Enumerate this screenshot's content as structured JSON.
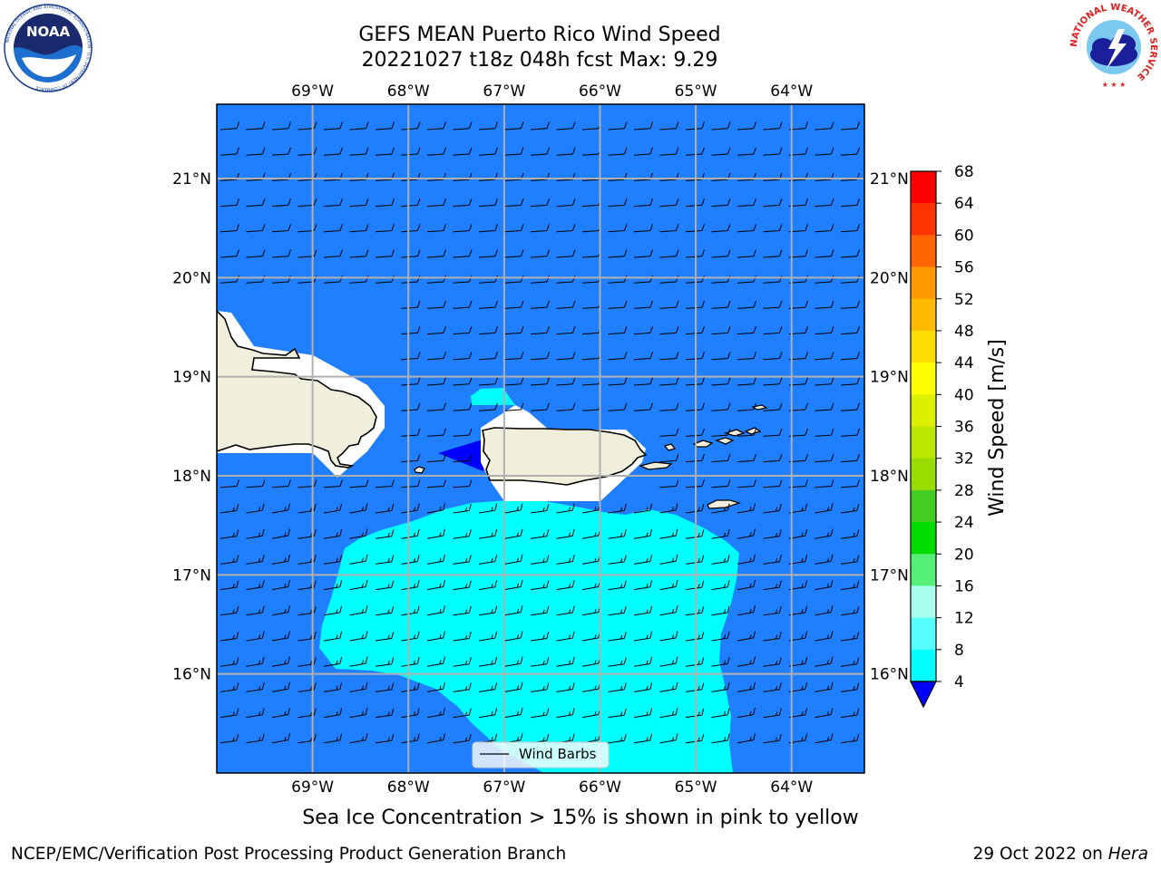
{
  "header": {
    "title_line1": "GEFS MEAN Puerto Rico Wind Speed",
    "title_line2": "20221027 t18z 048h fcst   Max: 9.29",
    "noaa_logo_text": "NOAA",
    "noaa_logo_ring": "NATIONAL OCEANIC AND ATMOSPHERIC ADMINISTRATION · U.S. DEPARTMENT OF COMMERCE",
    "nws_logo_text": "NATIONAL WEATHER SERVICE"
  },
  "map": {
    "lon_labels": [
      "69°W",
      "68°W",
      "67°W",
      "66°W",
      "65°W",
      "64°W"
    ],
    "lat_labels": [
      "21°N",
      "20°N",
      "19°N",
      "18°N",
      "17°N",
      "16°N"
    ],
    "lon_values": [
      -69,
      -68,
      -67,
      -66,
      -65,
      -64
    ],
    "lat_values": [
      21,
      20,
      19,
      18,
      17,
      16
    ],
    "lon_range": [
      -70.0,
      -63.24
    ],
    "lat_range": [
      15.0,
      21.75
    ],
    "legend_label": "Wind Barbs",
    "ocean_color": "#1f7fff",
    "land_color": "#efefdc"
  },
  "colorbar": {
    "label": "Wind Speed [m/s]",
    "ticks": [
      "68",
      "64",
      "60",
      "56",
      "52",
      "48",
      "44",
      "40",
      "36",
      "32",
      "28",
      "24",
      "20",
      "16",
      "12",
      "8",
      "4"
    ],
    "colors": [
      "#ff0000",
      "#ff3300",
      "#ff6600",
      "#ff9900",
      "#ffbb00",
      "#ffdd00",
      "#ffff00",
      "#ddf000",
      "#bbe600",
      "#99dd00",
      "#44cc22",
      "#00dd00",
      "#55ee77",
      "#aaffee",
      "#55ffff",
      "#00ffff",
      "#1f7fff"
    ],
    "under_color": "#0000ff"
  },
  "caption": "Sea Ice Concentration > 15% is shown in pink to yellow",
  "footer": {
    "left": "NCEP/EMC/Verification Post Processing Product Generation Branch",
    "right_date": "29 Oct 2022 on ",
    "right_host": "Hera"
  }
}
